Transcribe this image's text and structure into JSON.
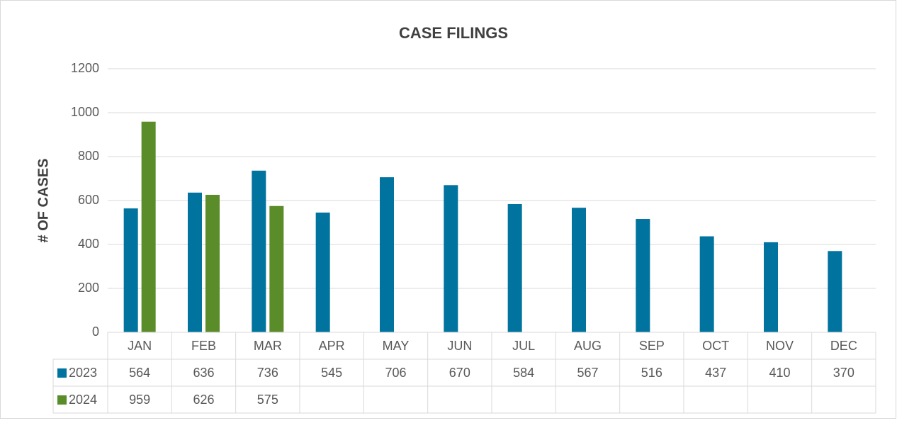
{
  "chart_data": {
    "type": "bar",
    "title": "CASE FILINGS",
    "y_label": "# OF CASES",
    "categories": [
      "JAN",
      "FEB",
      "MAR",
      "APR",
      "MAY",
      "JUN",
      "JUL",
      "AUG",
      "SEP",
      "OCT",
      "NOV",
      "DEC"
    ],
    "series": [
      {
        "name": "2023",
        "color": "#00739e",
        "values": [
          564,
          636,
          736,
          545,
          706,
          670,
          584,
          567,
          516,
          437,
          410,
          370
        ]
      },
      {
        "name": "2024",
        "color": "#5b8c2a",
        "values": [
          959,
          626,
          575,
          null,
          null,
          null,
          null,
          null,
          null,
          null,
          null,
          null
        ]
      }
    ],
    "ylim": [
      0,
      1200
    ],
    "yticks": [
      0,
      200,
      400,
      600,
      800,
      1000,
      1200
    ],
    "grid": true,
    "data_table": true
  }
}
